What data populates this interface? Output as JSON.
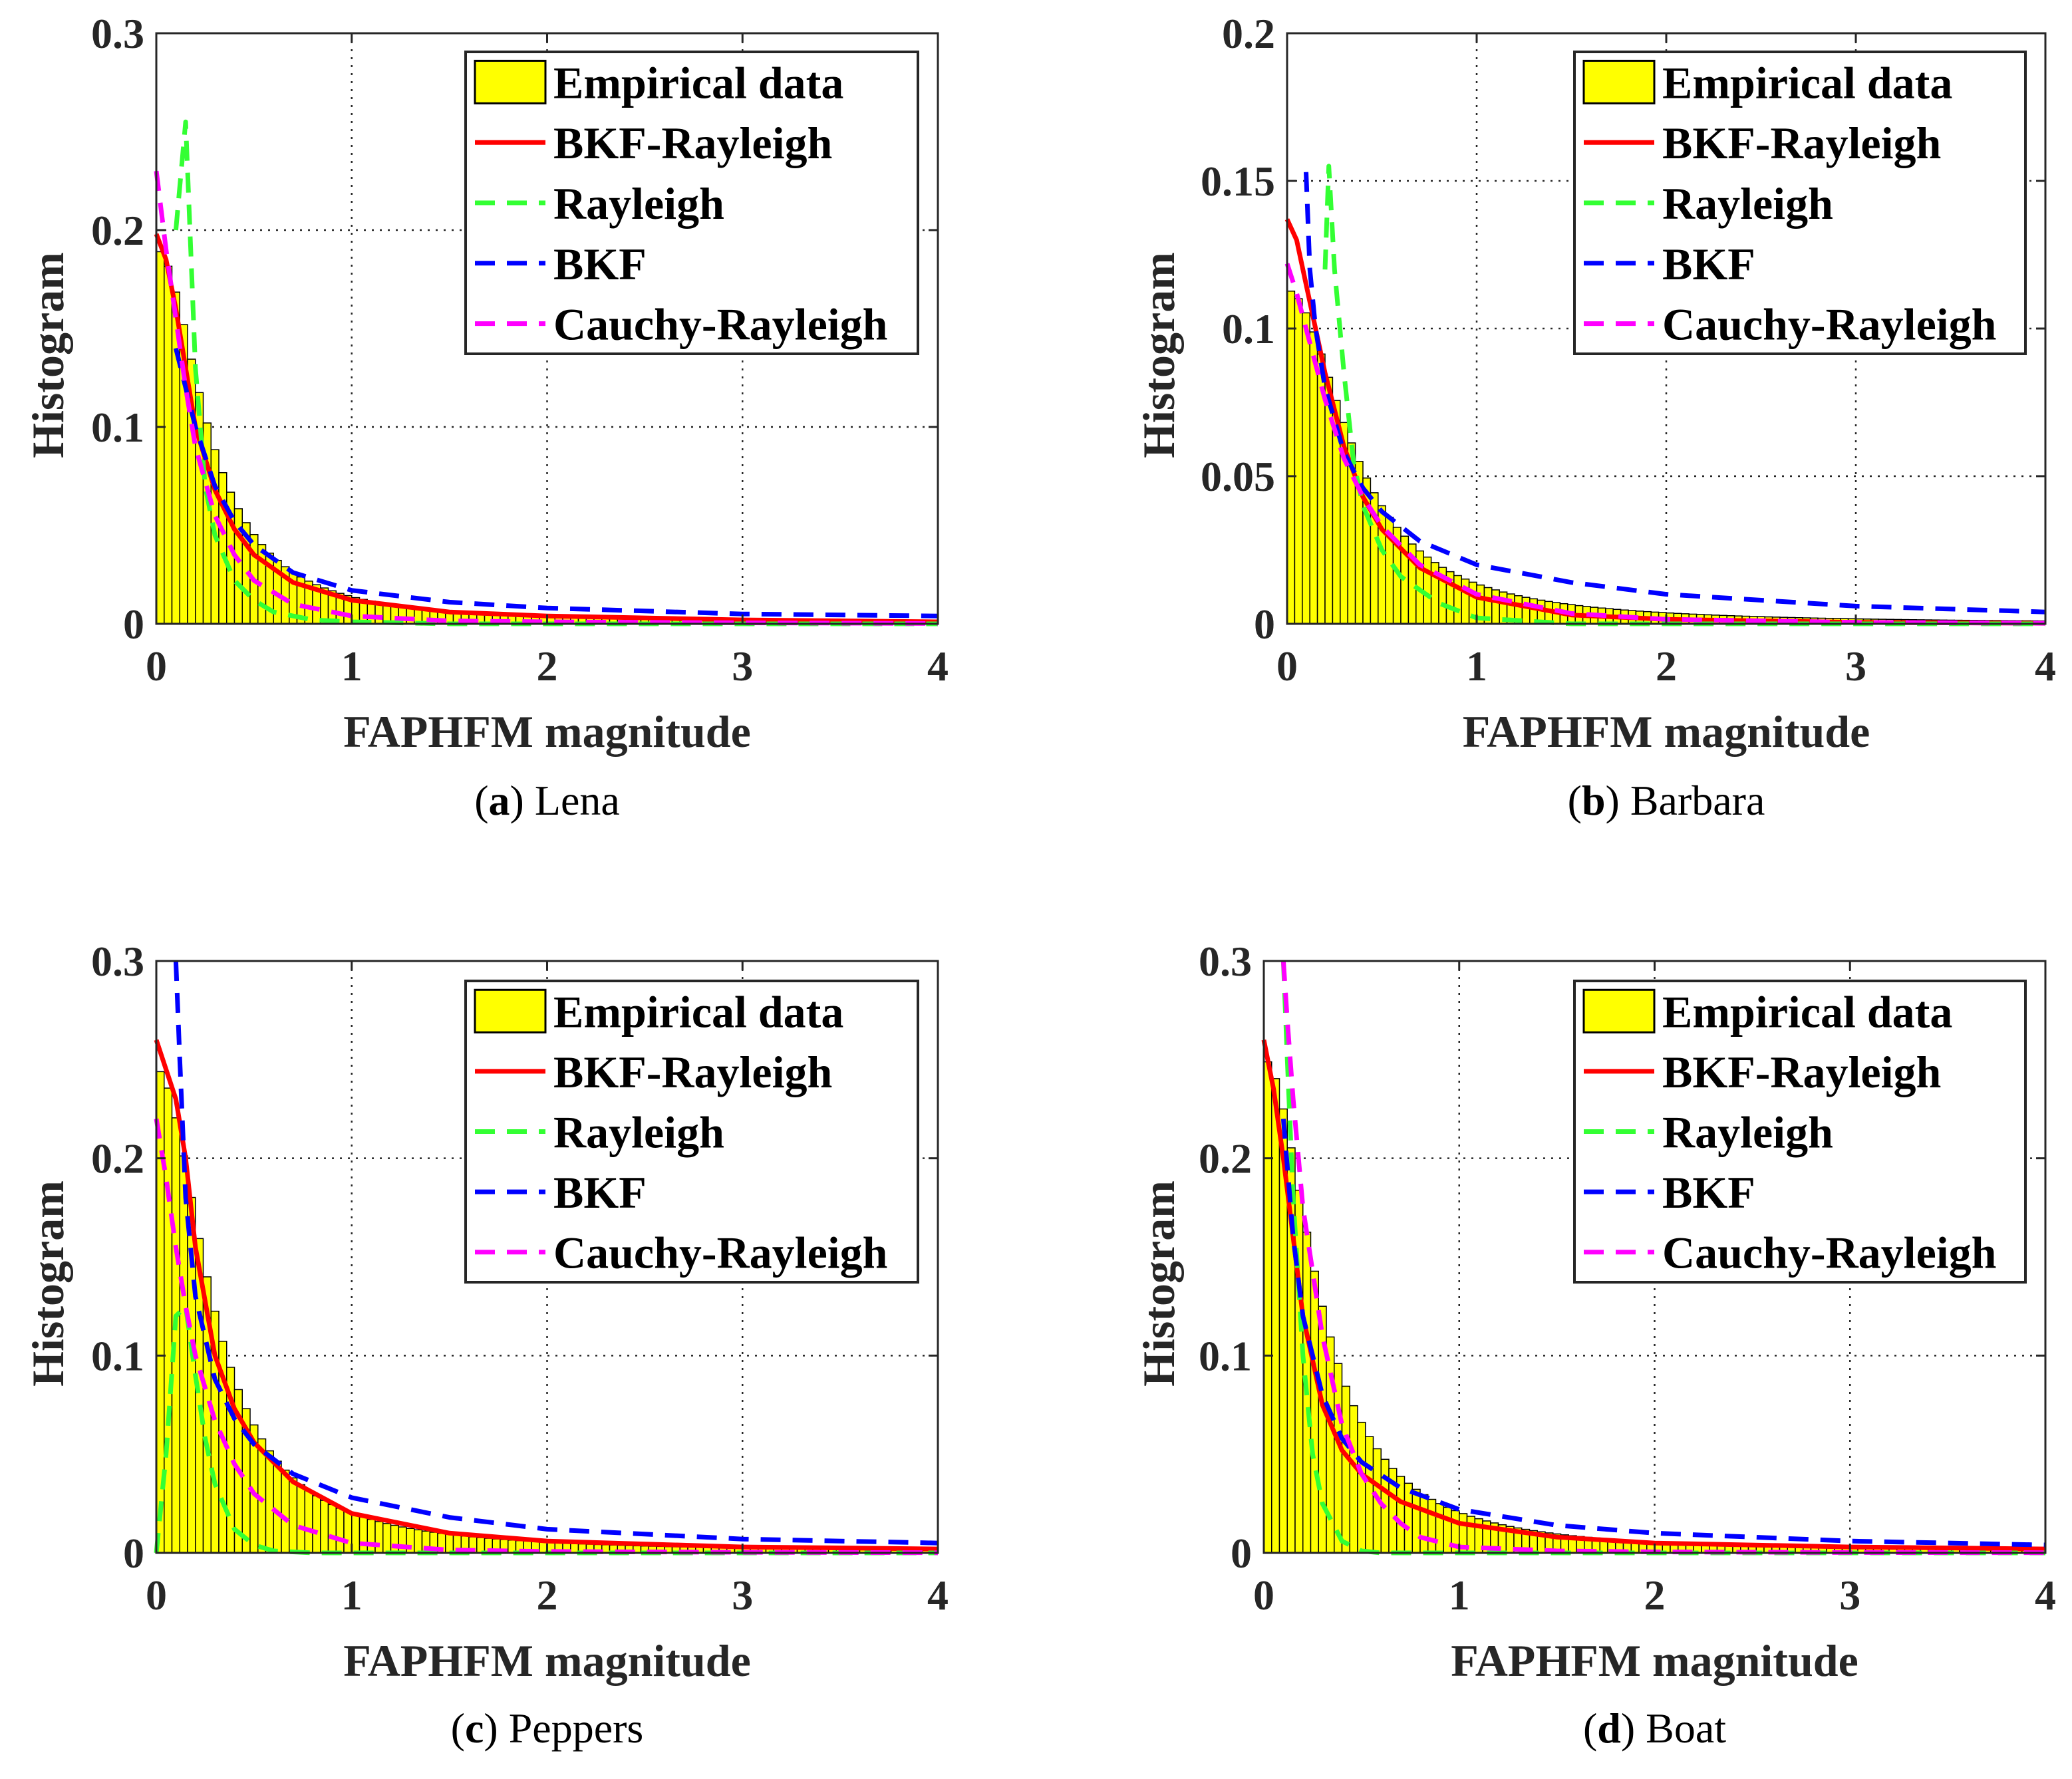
{
  "figure": {
    "legend_entries": [
      "Empirical data",
      "BKF-Rayleigh",
      "Rayleigh",
      "BKF",
      "Cauchy-Rayleigh"
    ],
    "colors": {
      "histogram_fill": "#ffff00",
      "histogram_edge": "#000000",
      "bkf_rayleigh": "#ff0000",
      "rayleigh": "#33ff33",
      "bkf": "#0000ff",
      "cauchy_rayleigh": "#ff00ff"
    }
  },
  "chart_data": [
    {
      "type": "bar",
      "panel": "a",
      "caption": "Lena",
      "xlabel": "FAPHFM magnitude",
      "ylabel": "Histogram",
      "xlim": [
        0,
        4
      ],
      "ylim": [
        0,
        0.3
      ],
      "xticks": [
        "0",
        "1",
        "2",
        "3",
        "4"
      ],
      "yticks": [
        "0",
        "0.1",
        "0.2",
        "0.3"
      ],
      "grid": true,
      "legend_position": "top-right",
      "hist_peak": 0.19,
      "hist_scale": 0.28,
      "series": [
        {
          "name": "BKF-Rayleigh",
          "x": [
            0,
            0.05,
            0.1,
            0.15,
            0.2,
            0.3,
            0.4,
            0.5,
            0.7,
            1.0,
            1.5,
            2.0,
            3.0,
            4.0
          ],
          "y": [
            0.198,
            0.185,
            0.16,
            0.13,
            0.1,
            0.068,
            0.048,
            0.035,
            0.021,
            0.012,
            0.006,
            0.004,
            0.002,
            0.001
          ]
        },
        {
          "name": "Rayleigh",
          "x": [
            0.1,
            0.15,
            0.2,
            0.25,
            0.3,
            0.4,
            0.5,
            0.6,
            0.8,
            1.0,
            1.5,
            2.0,
            3.0,
            4.0
          ],
          "y": [
            0.2,
            0.255,
            0.13,
            0.07,
            0.045,
            0.022,
            0.012,
            0.006,
            0.002,
            0.001,
            0.0,
            0.0,
            0.0,
            0.0
          ]
        },
        {
          "name": "BKF",
          "x": [
            0.1,
            0.15,
            0.2,
            0.3,
            0.4,
            0.5,
            0.7,
            1.0,
            1.5,
            2.0,
            3.0,
            4.0
          ],
          "y": [
            0.14,
            0.12,
            0.1,
            0.07,
            0.052,
            0.04,
            0.026,
            0.017,
            0.011,
            0.008,
            0.005,
            0.004
          ]
        },
        {
          "name": "Cauchy-Rayleigh",
          "x": [
            0,
            0.05,
            0.1,
            0.15,
            0.2,
            0.3,
            0.4,
            0.5,
            0.7,
            1.0,
            1.5,
            2.0,
            3.0,
            4.0
          ],
          "y": [
            0.23,
            0.19,
            0.155,
            0.12,
            0.09,
            0.055,
            0.035,
            0.022,
            0.01,
            0.004,
            0.0015,
            0.001,
            0.0005,
            0.0002
          ]
        }
      ]
    },
    {
      "type": "bar",
      "panel": "b",
      "caption": "Barbara",
      "xlabel": "FAPHFM magnitude",
      "ylabel": "Histogram",
      "xlim": [
        0,
        4
      ],
      "ylim": [
        0,
        0.2
      ],
      "xticks": [
        "0",
        "1",
        "2",
        "3",
        "4"
      ],
      "yticks": [
        "0",
        "0.05",
        "0.1",
        "0.15",
        "0.2"
      ],
      "grid": true,
      "legend_position": "top-right",
      "hist_peak": 0.113,
      "hist_scale": 0.37,
      "series": [
        {
          "name": "BKF-Rayleigh",
          "x": [
            0,
            0.05,
            0.1,
            0.15,
            0.2,
            0.3,
            0.4,
            0.5,
            0.7,
            1.0,
            1.5,
            2.0,
            3.0,
            4.0
          ],
          "y": [
            0.137,
            0.13,
            0.115,
            0.1,
            0.085,
            0.06,
            0.043,
            0.032,
            0.019,
            0.009,
            0.003,
            0.0015,
            0.0005,
            0.0002
          ]
        },
        {
          "name": "Rayleigh",
          "x": [
            0.2,
            0.22,
            0.25,
            0.3,
            0.35,
            0.4,
            0.5,
            0.6,
            0.8,
            1.0,
            1.5,
            2.0,
            3.0,
            4.0
          ],
          "y": [
            0.12,
            0.155,
            0.12,
            0.085,
            0.055,
            0.04,
            0.025,
            0.016,
            0.007,
            0.002,
            0.0,
            0.0,
            0.0,
            0.0
          ]
        },
        {
          "name": "BKF",
          "x": [
            0.1,
            0.12,
            0.15,
            0.2,
            0.3,
            0.4,
            0.5,
            0.7,
            1.0,
            1.5,
            2.0,
            3.0,
            4.0
          ],
          "y": [
            0.153,
            0.12,
            0.1,
            0.08,
            0.058,
            0.046,
            0.038,
            0.028,
            0.02,
            0.014,
            0.01,
            0.006,
            0.004
          ]
        },
        {
          "name": "Cauchy-Rayleigh",
          "x": [
            0,
            0.05,
            0.1,
            0.15,
            0.2,
            0.3,
            0.4,
            0.5,
            0.7,
            1.0,
            1.5,
            2.0,
            3.0,
            4.0
          ],
          "y": [
            0.122,
            0.112,
            0.1,
            0.088,
            0.076,
            0.056,
            0.043,
            0.033,
            0.02,
            0.01,
            0.0035,
            0.0015,
            0.0005,
            0.0002
          ]
        }
      ]
    },
    {
      "type": "bar",
      "panel": "c",
      "caption": "Peppers",
      "xlabel": "FAPHFM magnitude",
      "ylabel": "Histogram",
      "xlim": [
        0,
        4
      ],
      "ylim": [
        0,
        0.3
      ],
      "xticks": [
        "0",
        "1",
        "2",
        "3",
        "4"
      ],
      "yticks": [
        "0",
        "0.1",
        "0.2",
        "0.3"
      ],
      "grid": true,
      "legend_position": "top-right",
      "hist_peak": 0.245,
      "hist_scale": 0.3,
      "series": [
        {
          "name": "BKF-Rayleigh",
          "x": [
            0,
            0.05,
            0.1,
            0.15,
            0.2,
            0.3,
            0.4,
            0.5,
            0.7,
            1.0,
            1.5,
            2.0,
            3.0,
            4.0
          ],
          "y": [
            0.26,
            0.245,
            0.23,
            0.2,
            0.155,
            0.1,
            0.073,
            0.056,
            0.036,
            0.02,
            0.01,
            0.006,
            0.003,
            0.002
          ]
        },
        {
          "name": "Rayleigh",
          "x": [
            0,
            0.05,
            0.1,
            0.15,
            0.2,
            0.25,
            0.3,
            0.4,
            0.5,
            0.6,
            0.8,
            1.0,
            1.5,
            2.0,
            3.0,
            4.0
          ],
          "y": [
            0.0,
            0.05,
            0.12,
            0.125,
            0.09,
            0.058,
            0.035,
            0.012,
            0.004,
            0.001,
            0.0,
            0.0,
            0.0,
            0.0,
            0.0,
            0.0
          ]
        },
        {
          "name": "BKF",
          "x": [
            0.1,
            0.12,
            0.15,
            0.2,
            0.3,
            0.4,
            0.5,
            0.7,
            1.0,
            1.5,
            2.0,
            3.0,
            4.0
          ],
          "y": [
            0.3,
            0.25,
            0.18,
            0.13,
            0.088,
            0.068,
            0.055,
            0.04,
            0.028,
            0.018,
            0.012,
            0.007,
            0.005
          ]
        },
        {
          "name": "Cauchy-Rayleigh",
          "x": [
            0,
            0.05,
            0.1,
            0.15,
            0.2,
            0.3,
            0.4,
            0.5,
            0.7,
            1.0,
            1.5,
            2.0,
            3.0,
            4.0
          ],
          "y": [
            0.22,
            0.19,
            0.155,
            0.125,
            0.1,
            0.067,
            0.045,
            0.03,
            0.014,
            0.005,
            0.0015,
            0.0007,
            0.0003,
            0.0001
          ]
        }
      ]
    },
    {
      "type": "bar",
      "panel": "d",
      "caption": "Boat",
      "xlabel": "FAPHFM magnitude",
      "ylabel": "Histogram",
      "xlim": [
        0,
        4
      ],
      "ylim": [
        0,
        0.3
      ],
      "xticks": [
        "0",
        "1",
        "2",
        "3",
        "4"
      ],
      "yticks": [
        "0",
        "0.1",
        "0.2",
        "0.3"
      ],
      "grid": true,
      "legend_position": "top-right",
      "hist_peak": 0.25,
      "hist_scale": 0.3,
      "series": [
        {
          "name": "BKF-Rayleigh",
          "x": [
            0,
            0.05,
            0.1,
            0.15,
            0.2,
            0.3,
            0.4,
            0.5,
            0.7,
            1.0,
            1.5,
            2.0,
            3.0,
            4.0
          ],
          "y": [
            0.26,
            0.235,
            0.2,
            0.16,
            0.12,
            0.075,
            0.052,
            0.04,
            0.026,
            0.015,
            0.008,
            0.005,
            0.003,
            0.002
          ]
        },
        {
          "name": "Rayleigh",
          "x": [
            0.1,
            0.12,
            0.15,
            0.2,
            0.25,
            0.3,
            0.4,
            0.5,
            0.6,
            0.8,
            1.0,
            1.5,
            2.0,
            3.0,
            4.0
          ],
          "y": [
            0.3,
            0.25,
            0.18,
            0.1,
            0.05,
            0.025,
            0.006,
            0.001,
            0.0,
            0.0,
            0.0,
            0.0,
            0.0,
            0.0,
            0.0
          ]
        },
        {
          "name": "BKF",
          "x": [
            0.1,
            0.15,
            0.2,
            0.3,
            0.4,
            0.5,
            0.7,
            1.0,
            1.5,
            2.0,
            3.0,
            4.0
          ],
          "y": [
            0.22,
            0.16,
            0.12,
            0.08,
            0.058,
            0.046,
            0.033,
            0.022,
            0.014,
            0.01,
            0.006,
            0.004
          ]
        },
        {
          "name": "Cauchy-Rayleigh",
          "x": [
            0.1,
            0.12,
            0.15,
            0.2,
            0.3,
            0.4,
            0.5,
            0.6,
            0.7,
            0.8,
            1.0,
            1.5,
            2.0,
            3.0,
            4.0
          ],
          "y": [
            0.3,
            0.27,
            0.23,
            0.175,
            0.11,
            0.065,
            0.04,
            0.025,
            0.015,
            0.008,
            0.003,
            0.001,
            0.0005,
            0.0002,
            0.0001
          ]
        }
      ]
    }
  ]
}
